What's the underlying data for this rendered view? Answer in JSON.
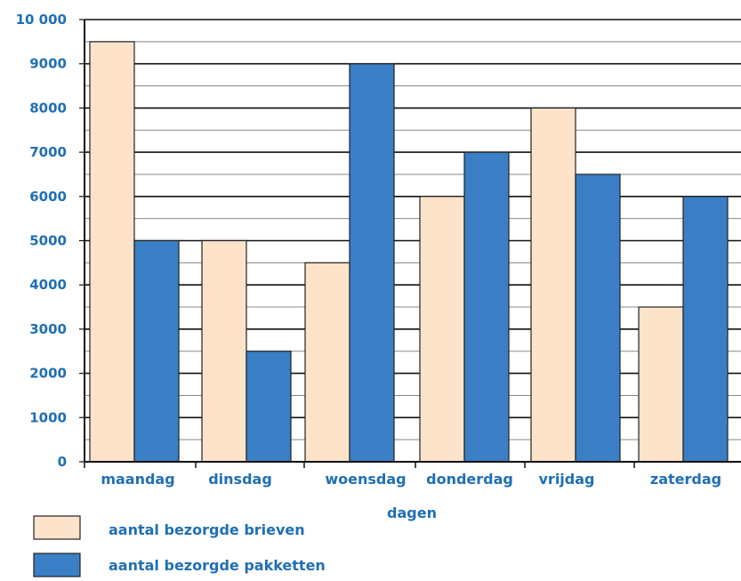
{
  "chart_data": {
    "type": "bar",
    "categories": [
      "maandag",
      "dinsdag",
      "woensdag",
      "donderdag",
      "vrijdag",
      "zaterdag"
    ],
    "series": [
      {
        "name": "aantal bezorgde brieven",
        "values": [
          9500,
          5000,
          4500,
          6000,
          8000,
          3500
        ],
        "color": "#fde3c9"
      },
      {
        "name": "aantal bezorgde pakketten",
        "values": [
          5000,
          2500,
          9000,
          7000,
          6500,
          6000
        ],
        "color": "#3a7fc6"
      }
    ],
    "xlabel": "dagen",
    "ylabel": "",
    "ylim": [
      0,
      10000
    ],
    "yticks": [
      0,
      1000,
      2000,
      3000,
      4000,
      5000,
      6000,
      7000,
      8000,
      9000,
      10000
    ],
    "ytick_labels": [
      "0",
      "1000",
      "2000",
      "3000",
      "4000",
      "5000",
      "6000",
      "7000",
      "8000",
      "9000",
      "10 000"
    ],
    "grid": true,
    "legend_position": "bottom-left",
    "colors": {
      "text": "#1f6fb5",
      "grid": "#000000",
      "bar_outline": "#222222"
    }
  }
}
